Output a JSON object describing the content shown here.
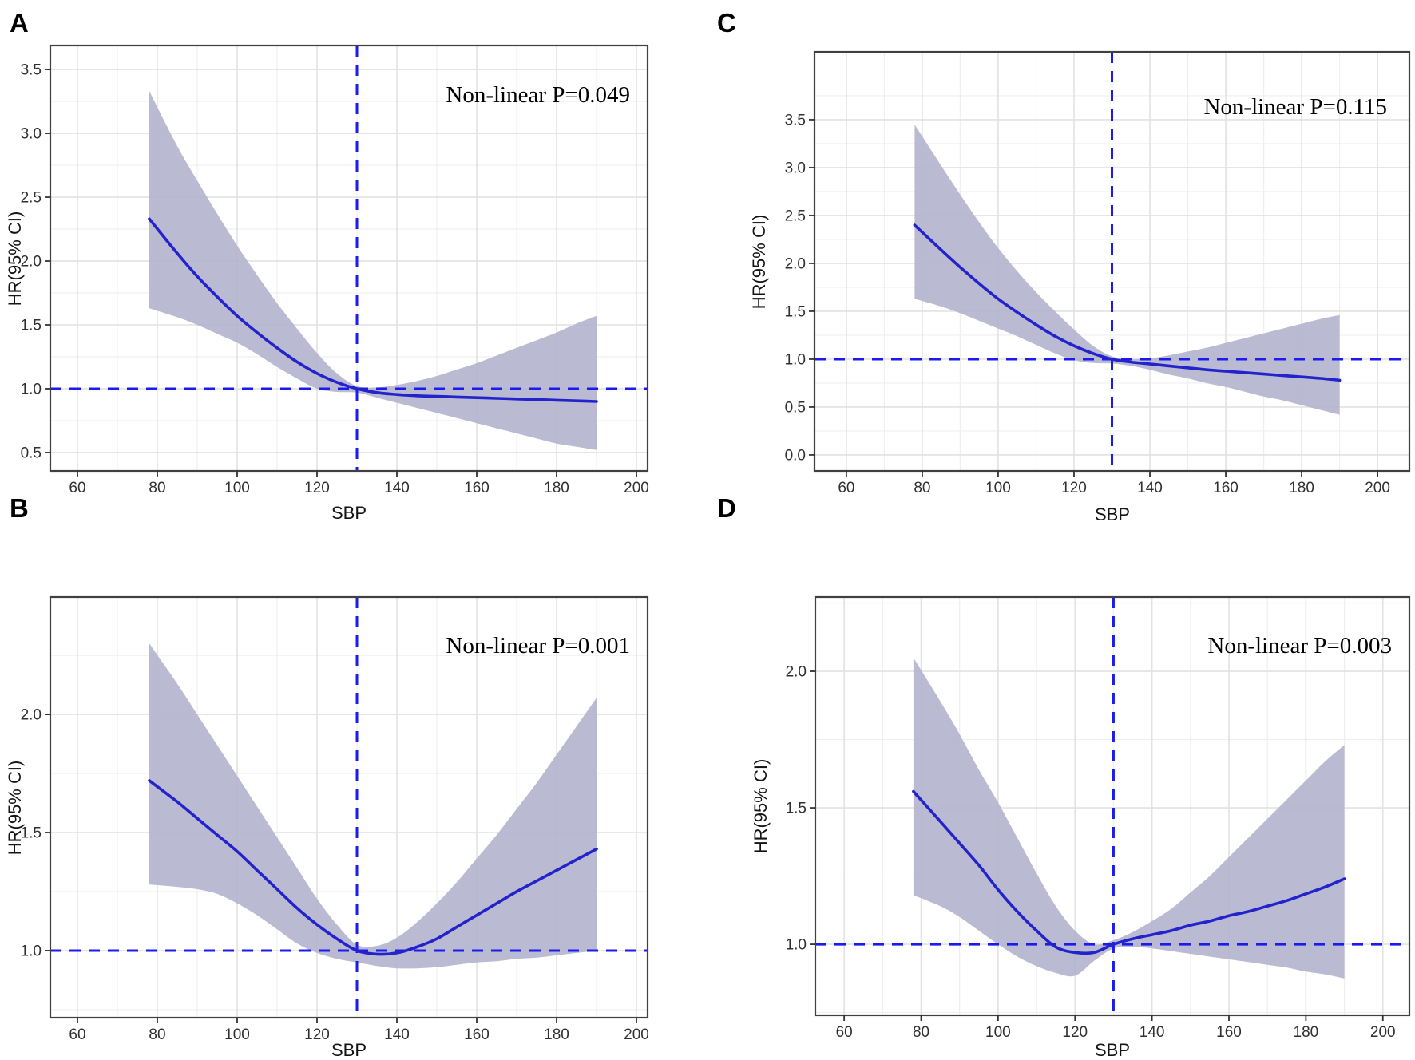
{
  "figure": {
    "background": "#ffffff",
    "style": {
      "band_color": "#b2b2ce",
      "curve_color": "#2323cb",
      "ref_line_color": "#1b1bf0",
      "grid_major_color": "#e2e2e2",
      "grid_minor_color": "#efefef",
      "panel_border_color": "#404040",
      "tick_color": "#333333",
      "tick_text_color": "#303030"
    }
  },
  "chart_data": [
    {
      "type": "line",
      "panel_label": "A",
      "annotation": "Non-linear P=0.049",
      "xlabel": "SBP",
      "ylabel": "HR(95% CI)",
      "xlim": [
        53.2,
        202.8
      ],
      "ylim": [
        0.356,
        3.688
      ],
      "xticks": [
        60,
        80,
        100,
        120,
        140,
        160,
        180,
        200
      ],
      "yticks": [
        0.5,
        1.0,
        1.5,
        2.0,
        2.5,
        3.0,
        3.5
      ],
      "x_minor": [
        70,
        90,
        110,
        130,
        150,
        170,
        190
      ],
      "y_minor": [
        0.75,
        1.25,
        1.75,
        2.25,
        2.75,
        3.25
      ],
      "ref_x": 130,
      "ref_y": 1.0,
      "grid": true,
      "legend": "none",
      "x": [
        78,
        85,
        90,
        95,
        100,
        105,
        110,
        115,
        120,
        125,
        130,
        135,
        140,
        145,
        150,
        155,
        160,
        165,
        170,
        175,
        180,
        185,
        190
      ],
      "series": [
        {
          "name": "HR estimate",
          "values": [
            2.33,
            2.06,
            1.88,
            1.72,
            1.57,
            1.44,
            1.32,
            1.21,
            1.12,
            1.05,
            1.0,
            0.97,
            0.955,
            0.945,
            0.94,
            0.935,
            0.93,
            0.925,
            0.92,
            0.915,
            0.91,
            0.905,
            0.9
          ]
        },
        {
          "name": "95% CI upper",
          "values": [
            3.33,
            2.9,
            2.63,
            2.37,
            2.12,
            1.89,
            1.67,
            1.47,
            1.28,
            1.12,
            1.02,
            1.01,
            1.03,
            1.06,
            1.1,
            1.15,
            1.2,
            1.26,
            1.32,
            1.38,
            1.44,
            1.51,
            1.57
          ]
        },
        {
          "name": "95% CI lower",
          "values": [
            1.63,
            1.56,
            1.5,
            1.43,
            1.36,
            1.27,
            1.17,
            1.08,
            1.0,
            0.975,
            0.97,
            0.93,
            0.89,
            0.85,
            0.81,
            0.77,
            0.73,
            0.69,
            0.65,
            0.61,
            0.57,
            0.545,
            0.52
          ]
        }
      ]
    },
    {
      "type": "line",
      "panel_label": "B",
      "annotation": "Non-linear P=0.001",
      "xlabel": "SBP",
      "ylabel": "HR(95% CI)",
      "xlim": [
        53.2,
        202.8
      ],
      "ylim": [
        0.716,
        2.497
      ],
      "xticks": [
        60,
        80,
        100,
        120,
        140,
        160,
        180,
        200
      ],
      "yticks": [
        1.0,
        1.5,
        2.0
      ],
      "x_minor": [
        70,
        90,
        110,
        130,
        150,
        170,
        190
      ],
      "y_minor": [
        0.75,
        1.25,
        1.75,
        2.25
      ],
      "ref_x": 130,
      "ref_y": 1.0,
      "grid": true,
      "legend": "none",
      "x": [
        78,
        85,
        90,
        95,
        100,
        105,
        110,
        115,
        120,
        125,
        130,
        135,
        140,
        145,
        150,
        155,
        160,
        165,
        170,
        175,
        180,
        185,
        190
      ],
      "series": [
        {
          "name": "HR estimate",
          "values": [
            1.72,
            1.63,
            1.56,
            1.49,
            1.42,
            1.34,
            1.26,
            1.18,
            1.11,
            1.05,
            1.0,
            0.985,
            0.99,
            1.015,
            1.05,
            1.1,
            1.15,
            1.2,
            1.25,
            1.295,
            1.34,
            1.385,
            1.43
          ]
        },
        {
          "name": "95% CI upper",
          "values": [
            2.3,
            2.13,
            2.0,
            1.87,
            1.74,
            1.61,
            1.48,
            1.35,
            1.22,
            1.11,
            1.025,
            1.02,
            1.055,
            1.12,
            1.2,
            1.29,
            1.39,
            1.49,
            1.6,
            1.71,
            1.83,
            1.95,
            2.07
          ]
        },
        {
          "name": "95% CI lower",
          "values": [
            1.28,
            1.27,
            1.26,
            1.24,
            1.2,
            1.15,
            1.09,
            1.03,
            0.99,
            0.965,
            0.95,
            0.935,
            0.925,
            0.925,
            0.93,
            0.94,
            0.95,
            0.955,
            0.965,
            0.97,
            0.98,
            0.99,
            1.0
          ]
        }
      ]
    },
    {
      "type": "line",
      "panel_label": "C",
      "annotation": "Non-linear P=0.115",
      "xlabel": "SBP",
      "ylabel": "HR(95% CI)",
      "xlim": [
        51.6,
        208.4
      ],
      "ylim": [
        -0.167,
        4.208
      ],
      "xticks": [
        60,
        80,
        100,
        120,
        140,
        160,
        180,
        200
      ],
      "yticks": [
        0.0,
        0.5,
        1.0,
        1.5,
        2.0,
        2.5,
        3.0,
        3.5
      ],
      "x_minor": [
        70,
        90,
        110,
        130,
        150,
        170,
        190
      ],
      "y_minor": [
        0.25,
        0.75,
        1.25,
        1.75,
        2.25,
        2.75,
        3.25,
        3.75
      ],
      "ref_x": 130,
      "ref_y": 1.0,
      "grid": true,
      "legend": "none",
      "x": [
        78,
        85,
        90,
        95,
        100,
        105,
        110,
        115,
        120,
        125,
        130,
        135,
        140,
        145,
        150,
        155,
        160,
        165,
        170,
        175,
        180,
        185,
        190
      ],
      "series": [
        {
          "name": "HR estimate",
          "values": [
            2.4,
            2.14,
            1.96,
            1.79,
            1.63,
            1.49,
            1.36,
            1.24,
            1.14,
            1.06,
            1.0,
            0.97,
            0.95,
            0.93,
            0.91,
            0.89,
            0.875,
            0.86,
            0.845,
            0.83,
            0.815,
            0.8,
            0.78
          ]
        },
        {
          "name": "95% CI upper",
          "values": [
            3.45,
            3.02,
            2.72,
            2.43,
            2.16,
            1.92,
            1.7,
            1.5,
            1.31,
            1.14,
            1.03,
            1.0,
            1.01,
            1.04,
            1.08,
            1.12,
            1.17,
            1.22,
            1.27,
            1.32,
            1.37,
            1.42,
            1.46
          ]
        },
        {
          "name": "95% CI lower",
          "values": [
            1.63,
            1.55,
            1.48,
            1.4,
            1.32,
            1.24,
            1.15,
            1.06,
            0.99,
            0.96,
            0.955,
            0.93,
            0.89,
            0.84,
            0.8,
            0.75,
            0.71,
            0.66,
            0.61,
            0.57,
            0.52,
            0.47,
            0.42
          ]
        }
      ]
    },
    {
      "type": "line",
      "panel_label": "D",
      "annotation": "Non-linear P=0.003",
      "xlabel": "SBP",
      "ylabel": "HR(95% CI)",
      "xlim": [
        52.5,
        206.9
      ],
      "ylim": [
        0.74,
        2.272
      ],
      "xticks": [
        60,
        80,
        100,
        120,
        140,
        160,
        180,
        200
      ],
      "yticks": [
        1.0,
        1.5,
        2.0
      ],
      "x_minor": [
        70,
        90,
        110,
        130,
        150,
        170,
        190
      ],
      "y_minor": [
        0.75,
        1.25,
        1.75,
        2.25
      ],
      "ref_x": 130,
      "ref_y": 1.0,
      "grid": true,
      "legend": "none",
      "x": [
        78,
        85,
        90,
        95,
        100,
        105,
        110,
        115,
        120,
        125,
        130,
        135,
        140,
        145,
        150,
        155,
        160,
        165,
        170,
        175,
        180,
        185,
        190
      ],
      "series": [
        {
          "name": "HR estimate",
          "values": [
            1.56,
            1.45,
            1.37,
            1.29,
            1.2,
            1.12,
            1.05,
            0.99,
            0.97,
            0.97,
            1.0,
            1.02,
            1.035,
            1.05,
            1.07,
            1.085,
            1.105,
            1.12,
            1.14,
            1.16,
            1.185,
            1.21,
            1.24
          ]
        },
        {
          "name": "95% CI upper",
          "values": [
            2.05,
            1.89,
            1.77,
            1.64,
            1.52,
            1.39,
            1.26,
            1.14,
            1.05,
            1.0,
            1.015,
            1.045,
            1.085,
            1.13,
            1.19,
            1.25,
            1.32,
            1.39,
            1.46,
            1.53,
            1.6,
            1.67,
            1.73
          ]
        },
        {
          "name": "95% CI lower",
          "values": [
            1.18,
            1.14,
            1.1,
            1.05,
            1.0,
            0.955,
            0.92,
            0.895,
            0.885,
            0.94,
            0.985,
            0.99,
            0.985,
            0.975,
            0.965,
            0.955,
            0.945,
            0.935,
            0.925,
            0.915,
            0.9,
            0.89,
            0.875
          ]
        }
      ]
    }
  ]
}
